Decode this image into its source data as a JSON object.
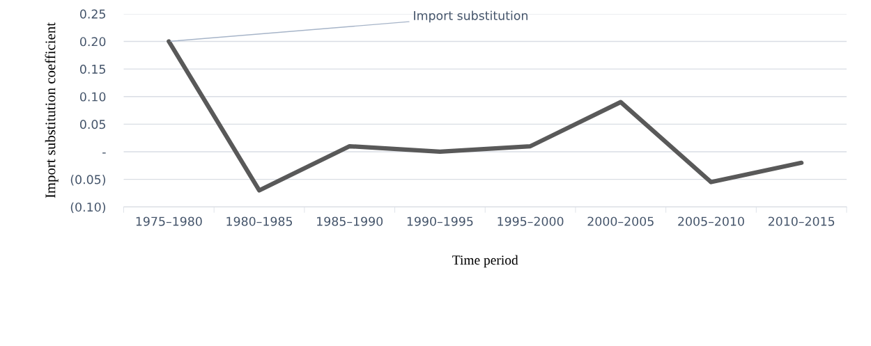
{
  "chart_data": {
    "type": "line",
    "xlabel": "Time period",
    "ylabel": "Import substitution coefficient",
    "categories": [
      "1975–1980",
      "1980–1985",
      "1985–1990",
      "1990–1995",
      "1995–2000",
      "2000–2005",
      "2005–2010",
      "2010–2015"
    ],
    "series": [
      {
        "color": "#595959",
        "values": [
          0.2,
          -0.07,
          0.01,
          0.0,
          0.01,
          0.09,
          -0.055,
          -0.02
        ]
      }
    ],
    "ylim": [
      -0.1,
      0.25
    ],
    "yticks": [
      {
        "value": -0.1,
        "label": "(0.10)"
      },
      {
        "value": -0.05,
        "label": "(0.05)"
      },
      {
        "value": 0,
        "label": "-"
      },
      {
        "value": 0.05,
        "label": "0.05"
      },
      {
        "value": 0.1,
        "label": "0.10"
      },
      {
        "value": 0.15,
        "label": "0.15"
      },
      {
        "value": 0.2,
        "label": "0.20"
      },
      {
        "value": 0.25,
        "label": "0.25"
      }
    ],
    "grid": "y",
    "marker": "none",
    "line_style": "solid",
    "annotations": [
      {
        "text": "Import substitution",
        "x": "1975–1980",
        "y": 0.2
      }
    ]
  }
}
